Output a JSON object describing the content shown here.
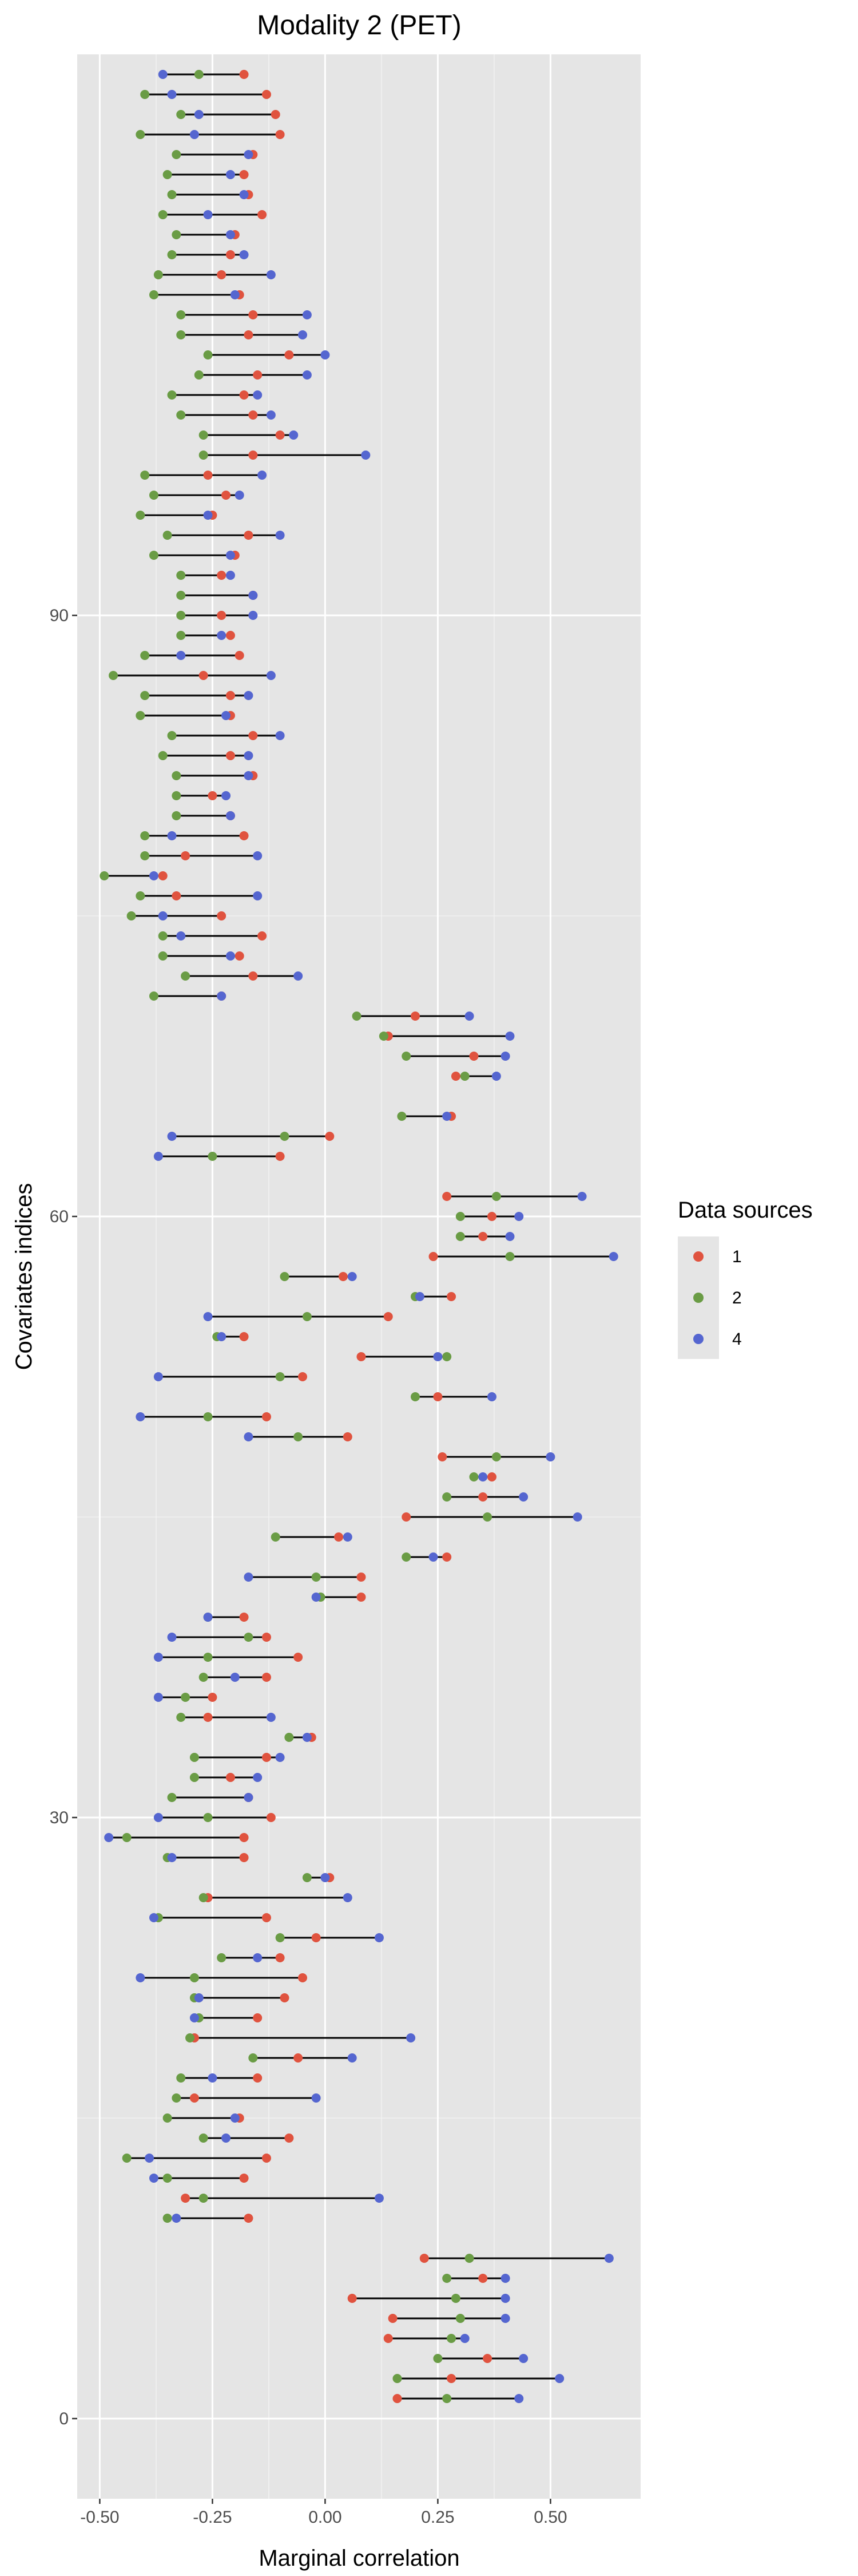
{
  "chart_data": {
    "type": "dumbbell",
    "title": "Modality 2 (PET)",
    "xlabel": "Marginal correlation",
    "ylabel": "Covariates indices",
    "xlim": [
      -0.55,
      0.7
    ],
    "ylim": [
      -4,
      118
    ],
    "x_ticks": [
      -0.5,
      -0.25,
      0.0,
      0.25,
      0.5
    ],
    "x_tick_labels": [
      "-0.50",
      "-0.25",
      "0.00",
      "0.25",
      "0.50"
    ],
    "y_ticks": [
      0,
      30,
      60,
      90
    ],
    "y_tick_labels": [
      "0",
      "30",
      "60",
      "90"
    ],
    "grid": true,
    "legend": {
      "title": "Data sources",
      "position": "right",
      "entries": [
        {
          "label": "1",
          "color": "#E0533F"
        },
        {
          "label": "2",
          "color": "#6A9C45"
        },
        {
          "label": "4",
          "color": "#5566D0"
        }
      ]
    },
    "series_keys": [
      "s1",
      "s2",
      "s4"
    ],
    "rows": [
      {
        "y": 1,
        "s1": 0.16,
        "s2": 0.27,
        "s4": 0.43
      },
      {
        "y": 2,
        "s1": 0.28,
        "s2": 0.16,
        "s4": 0.52
      },
      {
        "y": 3,
        "s1": 0.36,
        "s2": 0.25,
        "s4": 0.44
      },
      {
        "y": 4,
        "s1": 0.14,
        "s2": 0.28,
        "s4": 0.31
      },
      {
        "y": 5,
        "s1": 0.15,
        "s2": 0.3,
        "s4": 0.4
      },
      {
        "y": 6,
        "s1": 0.06,
        "s2": 0.29,
        "s4": 0.4
      },
      {
        "y": 7,
        "s1": 0.35,
        "s2": 0.27,
        "s4": 0.4
      },
      {
        "y": 8,
        "s1": 0.22,
        "s2": 0.32,
        "s4": 0.63
      },
      {
        "y": 10,
        "s1": -0.17,
        "s2": -0.35,
        "s4": -0.33
      },
      {
        "y": 11,
        "s1": -0.31,
        "s2": -0.27,
        "s4": 0.12
      },
      {
        "y": 12,
        "s1": -0.18,
        "s2": -0.35,
        "s4": -0.38
      },
      {
        "y": 13,
        "s1": -0.13,
        "s2": -0.44,
        "s4": -0.39
      },
      {
        "y": 14,
        "s1": -0.08,
        "s2": -0.27,
        "s4": -0.22
      },
      {
        "y": 15,
        "s1": -0.19,
        "s2": -0.35,
        "s4": -0.2
      },
      {
        "y": 16,
        "s1": -0.29,
        "s2": -0.33,
        "s4": -0.02
      },
      {
        "y": 17,
        "s1": -0.15,
        "s2": -0.32,
        "s4": -0.25
      },
      {
        "y": 18,
        "s1": -0.06,
        "s2": -0.16,
        "s4": 0.06
      },
      {
        "y": 19,
        "s1": -0.29,
        "s2": -0.3,
        "s4": 0.19
      },
      {
        "y": 20,
        "s1": -0.15,
        "s2": -0.28,
        "s4": -0.29
      },
      {
        "y": 21,
        "s1": -0.09,
        "s2": -0.29,
        "s4": -0.28
      },
      {
        "y": 22,
        "s1": -0.05,
        "s2": -0.29,
        "s4": -0.41
      },
      {
        "y": 23,
        "s1": -0.1,
        "s2": -0.23,
        "s4": -0.15
      },
      {
        "y": 24,
        "s1": -0.02,
        "s2": -0.1,
        "s4": 0.12
      },
      {
        "y": 25,
        "s1": -0.13,
        "s2": -0.37,
        "s4": -0.38
      },
      {
        "y": 26,
        "s1": -0.26,
        "s2": -0.27,
        "s4": 0.05
      },
      {
        "y": 27,
        "s1": 0.01,
        "s2": -0.04,
        "s4": 0.0
      },
      {
        "y": 28,
        "s1": -0.18,
        "s2": -0.35,
        "s4": -0.34
      },
      {
        "y": 29,
        "s1": -0.18,
        "s2": -0.44,
        "s4": -0.48
      },
      {
        "y": 30,
        "s1": -0.12,
        "s2": -0.26,
        "s4": -0.37
      },
      {
        "y": 31,
        "s1": -0.17,
        "s2": -0.34,
        "s4": -0.17
      },
      {
        "y": 32,
        "s1": -0.21,
        "s2": -0.29,
        "s4": -0.15
      },
      {
        "y": 33,
        "s1": -0.13,
        "s2": -0.29,
        "s4": -0.1
      },
      {
        "y": 34,
        "s1": -0.03,
        "s2": -0.08,
        "s4": -0.04
      },
      {
        "y": 35,
        "s1": -0.26,
        "s2": -0.32,
        "s4": -0.12
      },
      {
        "y": 36,
        "s1": -0.25,
        "s2": -0.31,
        "s4": -0.37
      },
      {
        "y": 37,
        "s1": -0.13,
        "s2": -0.27,
        "s4": -0.2
      },
      {
        "y": 38,
        "s1": -0.06,
        "s2": -0.26,
        "s4": -0.37
      },
      {
        "y": 39,
        "s1": -0.13,
        "s2": -0.17,
        "s4": -0.34
      },
      {
        "y": 40,
        "s1": -0.18,
        "s2": -0.26,
        "s4": -0.26
      },
      {
        "y": 41,
        "s1": 0.08,
        "s2": -0.01,
        "s4": -0.02
      },
      {
        "y": 42,
        "s1": 0.08,
        "s2": -0.02,
        "s4": -0.17
      },
      {
        "y": 43,
        "s1": 0.27,
        "s2": 0.18,
        "s4": 0.24
      },
      {
        "y": 44,
        "s1": 0.03,
        "s2": -0.11,
        "s4": 0.05
      },
      {
        "y": 45,
        "s1": 0.18,
        "s2": 0.36,
        "s4": 0.56
      },
      {
        "y": 46,
        "s1": 0.35,
        "s2": 0.27,
        "s4": 0.44
      },
      {
        "y": 47,
        "s1": 0.37,
        "s2": 0.33,
        "s4": 0.35
      },
      {
        "y": 48,
        "s1": 0.26,
        "s2": 0.38,
        "s4": 0.5
      },
      {
        "y": 49,
        "s1": 0.05,
        "s2": -0.06,
        "s4": -0.17
      },
      {
        "y": 50,
        "s1": -0.13,
        "s2": -0.26,
        "s4": -0.41
      },
      {
        "y": 51,
        "s1": 0.25,
        "s2": 0.2,
        "s4": 0.37
      },
      {
        "y": 52,
        "s1": -0.05,
        "s2": -0.1,
        "s4": -0.37
      },
      {
        "y": 53,
        "s1": 0.08,
        "s2": 0.27,
        "s4": 0.25
      },
      {
        "y": 54,
        "s1": -0.18,
        "s2": -0.24,
        "s4": -0.23
      },
      {
        "y": 55,
        "s1": 0.14,
        "s2": -0.04,
        "s4": -0.26
      },
      {
        "y": 56,
        "s1": 0.28,
        "s2": 0.2,
        "s4": 0.21
      },
      {
        "y": 57,
        "s1": 0.04,
        "s2": -0.09,
        "s4": 0.06
      },
      {
        "y": 58,
        "s1": 0.24,
        "s2": 0.41,
        "s4": 0.64
      },
      {
        "y": 59,
        "s1": 0.35,
        "s2": 0.3,
        "s4": 0.41
      },
      {
        "y": 60,
        "s1": 0.37,
        "s2": 0.3,
        "s4": 0.43
      },
      {
        "y": 61,
        "s1": 0.27,
        "s2": 0.38,
        "s4": 0.57
      },
      {
        "y": 63,
        "s1": -0.1,
        "s2": -0.25,
        "s4": -0.37
      },
      {
        "y": 64,
        "s1": 0.01,
        "s2": -0.09,
        "s4": -0.34
      },
      {
        "y": 65,
        "s1": 0.28,
        "s2": 0.17,
        "s4": 0.27
      },
      {
        "y": 67,
        "s1": 0.29,
        "s2": 0.31,
        "s4": 0.38
      },
      {
        "y": 68,
        "s1": 0.33,
        "s2": 0.18,
        "s4": 0.4
      },
      {
        "y": 69,
        "s1": 0.14,
        "s2": 0.13,
        "s4": 0.41
      },
      {
        "y": 70,
        "s1": 0.2,
        "s2": 0.07,
        "s4": 0.32
      },
      {
        "y": 71,
        "s1": -0.23,
        "s2": -0.38,
        "s4": -0.23
      },
      {
        "y": 72,
        "s1": -0.16,
        "s2": -0.31,
        "s4": -0.06
      },
      {
        "y": 73,
        "s1": -0.19,
        "s2": -0.36,
        "s4": -0.21
      },
      {
        "y": 74,
        "s1": -0.14,
        "s2": -0.36,
        "s4": -0.32
      },
      {
        "y": 75,
        "s1": -0.23,
        "s2": -0.43,
        "s4": -0.36
      },
      {
        "y": 76,
        "s1": -0.33,
        "s2": -0.41,
        "s4": -0.15
      },
      {
        "y": 77,
        "s1": -0.36,
        "s2": -0.49,
        "s4": -0.38
      },
      {
        "y": 78,
        "s1": -0.31,
        "s2": -0.4,
        "s4": -0.15
      },
      {
        "y": 79,
        "s1": -0.18,
        "s2": -0.4,
        "s4": -0.34
      },
      {
        "y": 80,
        "s1": -0.21,
        "s2": -0.33,
        "s4": -0.21
      },
      {
        "y": 81,
        "s1": -0.25,
        "s2": -0.33,
        "s4": -0.22
      },
      {
        "y": 82,
        "s1": -0.16,
        "s2": -0.33,
        "s4": -0.17
      },
      {
        "y": 83,
        "s1": -0.21,
        "s2": -0.36,
        "s4": -0.17
      },
      {
        "y": 84,
        "s1": -0.16,
        "s2": -0.34,
        "s4": -0.1
      },
      {
        "y": 85,
        "s1": -0.21,
        "s2": -0.41,
        "s4": -0.22
      },
      {
        "y": 86,
        "s1": -0.21,
        "s2": -0.4,
        "s4": -0.17
      },
      {
        "y": 87,
        "s1": -0.27,
        "s2": -0.47,
        "s4": -0.12
      },
      {
        "y": 88,
        "s1": -0.19,
        "s2": -0.4,
        "s4": -0.32
      },
      {
        "y": 89,
        "s1": -0.21,
        "s2": -0.32,
        "s4": -0.23
      },
      {
        "y": 90,
        "s1": -0.23,
        "s2": -0.32,
        "s4": -0.16
      },
      {
        "y": 91,
        "s1": -0.16,
        "s2": -0.32,
        "s4": -0.16
      },
      {
        "y": 92,
        "s1": -0.23,
        "s2": -0.32,
        "s4": -0.21
      },
      {
        "y": 93,
        "s1": -0.2,
        "s2": -0.38,
        "s4": -0.21
      },
      {
        "y": 94,
        "s1": -0.17,
        "s2": -0.35,
        "s4": -0.1
      },
      {
        "y": 95,
        "s1": -0.25,
        "s2": -0.41,
        "s4": -0.26
      },
      {
        "y": 96,
        "s1": -0.22,
        "s2": -0.38,
        "s4": -0.19
      },
      {
        "y": 97,
        "s1": -0.26,
        "s2": -0.4,
        "s4": -0.14
      },
      {
        "y": 98,
        "s1": -0.16,
        "s2": -0.27,
        "s4": 0.09
      },
      {
        "y": 99,
        "s1": -0.1,
        "s2": -0.27,
        "s4": -0.07
      },
      {
        "y": 100,
        "s1": -0.16,
        "s2": -0.32,
        "s4": -0.12
      },
      {
        "y": 101,
        "s1": -0.18,
        "s2": -0.34,
        "s4": -0.15
      },
      {
        "y": 102,
        "s1": -0.15,
        "s2": -0.28,
        "s4": -0.04
      },
      {
        "y": 103,
        "s1": -0.08,
        "s2": -0.26,
        "s4": 0.0
      },
      {
        "y": 104,
        "s1": -0.17,
        "s2": -0.32,
        "s4": -0.05
      },
      {
        "y": 105,
        "s1": -0.16,
        "s2": -0.32,
        "s4": -0.04
      },
      {
        "y": 106,
        "s1": -0.19,
        "s2": -0.38,
        "s4": -0.2
      },
      {
        "y": 107,
        "s1": -0.23,
        "s2": -0.37,
        "s4": -0.12
      },
      {
        "y": 108,
        "s1": -0.21,
        "s2": -0.34,
        "s4": -0.18
      },
      {
        "y": 109,
        "s1": -0.2,
        "s2": -0.33,
        "s4": -0.21
      },
      {
        "y": 110,
        "s1": -0.14,
        "s2": -0.36,
        "s4": -0.26
      },
      {
        "y": 111,
        "s1": -0.17,
        "s2": -0.34,
        "s4": -0.18
      },
      {
        "y": 112,
        "s1": -0.18,
        "s2": -0.35,
        "s4": -0.21
      },
      {
        "y": 113,
        "s1": -0.16,
        "s2": -0.33,
        "s4": -0.17
      },
      {
        "y": 114,
        "s1": -0.1,
        "s2": -0.41,
        "s4": -0.29
      },
      {
        "y": 115,
        "s1": -0.11,
        "s2": -0.32,
        "s4": -0.28
      },
      {
        "y": 116,
        "s1": -0.13,
        "s2": -0.4,
        "s4": -0.34
      },
      {
        "y": 117,
        "s1": -0.18,
        "s2": -0.28,
        "s4": -0.36
      }
    ]
  }
}
